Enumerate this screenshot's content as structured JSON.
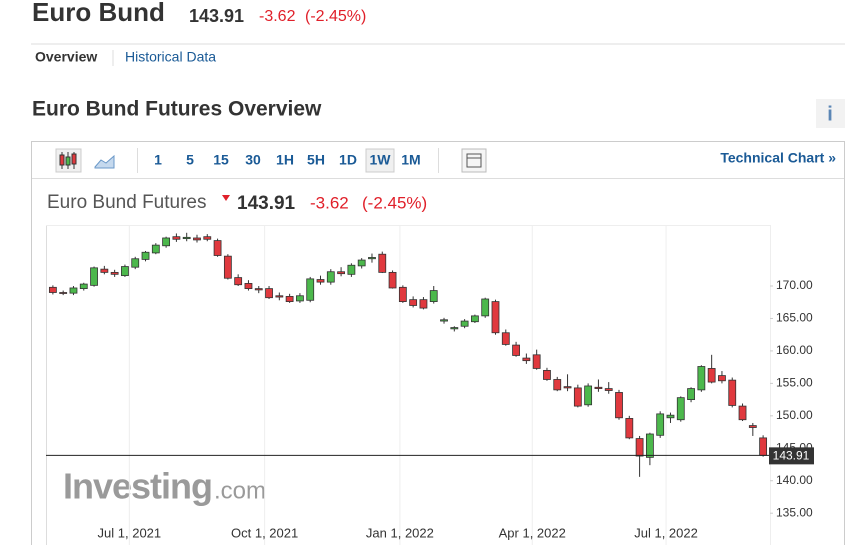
{
  "header": {
    "title": "Euro Bund",
    "price": "143.91",
    "change": "-3.62",
    "change_pct": "(-2.45%)"
  },
  "tabs": [
    "Overview",
    "Historical Data"
  ],
  "section_title": "Euro Bund Futures Overview",
  "info_icon": "i",
  "toolbar": {
    "intervals": [
      "1",
      "5",
      "15",
      "30",
      "1H",
      "5H",
      "1D",
      "1W",
      "1M"
    ],
    "selected": 7,
    "link": "Technical Chart »"
  },
  "chart_data": {
    "type": "candlestick",
    "title": "Euro Bund Futures",
    "price": 143.91,
    "change": -3.62,
    "change_pct": "(-2.45%)",
    "watermark": [
      "Investing",
      ".com"
    ],
    "up_color": "#4cb84c",
    "down_color": "#e0393e",
    "grid": "x",
    "x": [
      "2021-05-10",
      "2021-05-17",
      "2021-05-24",
      "2021-05-31",
      "2021-06-07",
      "2021-06-14",
      "2021-06-21",
      "2021-06-28",
      "2021-07-05",
      "2021-07-12",
      "2021-07-19",
      "2021-07-26",
      "2021-08-02",
      "2021-08-09",
      "2021-08-16",
      "2021-08-23",
      "2021-08-30",
      "2021-09-06",
      "2021-09-13",
      "2021-09-20",
      "2021-09-27",
      "2021-10-04",
      "2021-10-11",
      "2021-10-18",
      "2021-10-25",
      "2021-11-01",
      "2021-11-08",
      "2021-11-15",
      "2021-11-22",
      "2021-11-29",
      "2021-12-06",
      "2021-12-13",
      "2021-12-20",
      "2021-12-27",
      "2022-01-03",
      "2022-01-10",
      "2022-01-17",
      "2022-01-24",
      "2022-01-31",
      "2022-02-07",
      "2022-02-14",
      "2022-02-21",
      "2022-02-28",
      "2022-03-07",
      "2022-03-14",
      "2022-03-21",
      "2022-03-28",
      "2022-04-04",
      "2022-04-11",
      "2022-04-18",
      "2022-04-25",
      "2022-05-02",
      "2022-05-09",
      "2022-05-16",
      "2022-05-23",
      "2022-05-30",
      "2022-06-06",
      "2022-06-13",
      "2022-06-20",
      "2022-06-27",
      "2022-07-04",
      "2022-07-11",
      "2022-07-18",
      "2022-07-25",
      "2022-08-01",
      "2022-08-08",
      "2022-08-15",
      "2022-08-22",
      "2022-08-29",
      "2022-09-05"
    ],
    "open": [
      169.8,
      169.0,
      168.9,
      169.6,
      170.1,
      172.6,
      172.1,
      171.6,
      172.9,
      174.1,
      175.1,
      176.2,
      177.6,
      177.3,
      177.4,
      177.6,
      177.0,
      174.6,
      171.3,
      170.4,
      169.6,
      169.6,
      168.5,
      168.4,
      167.7,
      167.8,
      171.0,
      170.6,
      172.2,
      171.8,
      173.1,
      174.2,
      174.9,
      172.1,
      169.8,
      167.9,
      167.9,
      167.6,
      164.6,
      163.4,
      163.8,
      164.5,
      165.4,
      167.6,
      162.8,
      160.9,
      158.9,
      159.4,
      157.0,
      155.6,
      154.5,
      154.3,
      151.7,
      154.4,
      154.2,
      153.6,
      149.6,
      146.5,
      143.6,
      147.0,
      149.7,
      149.4,
      152.5,
      154.0,
      157.3,
      156.2,
      155.5,
      151.5,
      148.5,
      146.6
    ],
    "high": [
      170.1,
      169.3,
      170.0,
      170.5,
      173.0,
      173.1,
      172.5,
      173.3,
      174.5,
      175.4,
      176.6,
      177.6,
      178.1,
      178.2,
      177.9,
      178.0,
      177.3,
      174.9,
      171.8,
      170.9,
      170.0,
      170.0,
      169.0,
      168.8,
      168.9,
      171.4,
      171.6,
      172.6,
      172.9,
      173.5,
      174.3,
      175.0,
      175.3,
      172.4,
      170.1,
      168.4,
      168.3,
      170.0,
      165.1,
      163.8,
      164.9,
      165.6,
      168.2,
      167.9,
      163.3,
      161.4,
      159.6,
      160.2,
      157.4,
      156.0,
      156.4,
      154.8,
      155.0,
      155.6,
      155.2,
      154.0,
      150.0,
      146.9,
      147.4,
      150.7,
      150.5,
      153.0,
      154.4,
      157.8,
      159.4,
      156.9,
      155.9,
      151.9,
      148.9,
      147.0
    ],
    "low": [
      168.7,
      168.6,
      168.6,
      169.3,
      169.9,
      171.8,
      171.4,
      171.4,
      172.6,
      173.8,
      174.9,
      175.9,
      176.8,
      176.9,
      176.7,
      176.9,
      174.5,
      171.0,
      170.0,
      169.3,
      168.9,
      168.0,
      167.8,
      167.4,
      167.4,
      167.5,
      170.2,
      170.2,
      171.5,
      171.4,
      172.7,
      173.6,
      172.0,
      169.6,
      167.4,
      166.7,
      166.4,
      167.3,
      164.2,
      163.0,
      163.5,
      164.3,
      165.1,
      162.5,
      160.8,
      159.1,
      158.0,
      157.1,
      155.4,
      153.8,
      153.8,
      151.3,
      151.4,
      153.7,
      153.4,
      149.4,
      146.4,
      140.6,
      142.4,
      146.6,
      148.9,
      149.1,
      152.1,
      153.7,
      155.0,
      155.0,
      151.3,
      149.2,
      146.9,
      143.7
    ],
    "close": [
      169.0,
      168.9,
      169.7,
      170.3,
      172.8,
      172.1,
      171.8,
      173.0,
      174.2,
      175.2,
      176.3,
      177.4,
      177.2,
      177.5,
      177.1,
      177.2,
      174.7,
      171.2,
      170.2,
      169.6,
      169.4,
      168.2,
      168.3,
      167.6,
      168.5,
      171.1,
      170.6,
      172.2,
      171.9,
      173.2,
      174.0,
      174.4,
      172.1,
      169.7,
      167.6,
      167.0,
      166.6,
      169.3,
      164.8,
      163.6,
      164.6,
      165.4,
      168.0,
      162.8,
      161.0,
      159.3,
      158.5,
      157.3,
      155.6,
      154.0,
      154.3,
      151.5,
      154.6,
      154.2,
      153.9,
      149.7,
      146.6,
      143.8,
      147.2,
      150.3,
      150.1,
      152.8,
      154.2,
      157.6,
      155.2,
      155.4,
      151.6,
      149.4,
      148.2,
      143.91
    ],
    "xlim": [
      "2021-05-06",
      "2022-09-09"
    ],
    "xticks": [
      {
        "value": "2021-07-01",
        "label": "Jul 1, 2021"
      },
      {
        "value": "2021-10-01",
        "label": "Oct 1, 2021"
      },
      {
        "value": "2022-01-01",
        "label": "Jan 1, 2022"
      },
      {
        "value": "2022-04-01",
        "label": "Apr 1, 2022"
      },
      {
        "value": "2022-07-01",
        "label": "Jul 1, 2022"
      }
    ],
    "ylim": [
      130.1,
      179.4
    ],
    "yticks": [
      {
        "value": 135,
        "label": "135.00"
      },
      {
        "value": 140,
        "label": "140.00"
      },
      {
        "value": 145,
        "label": "145.00"
      },
      {
        "value": 150,
        "label": "150.00"
      },
      {
        "value": 155,
        "label": "155.00"
      },
      {
        "value": 160,
        "label": "160.00"
      },
      {
        "value": 165,
        "label": "165.00"
      },
      {
        "value": 170,
        "label": "170.00"
      }
    ]
  }
}
